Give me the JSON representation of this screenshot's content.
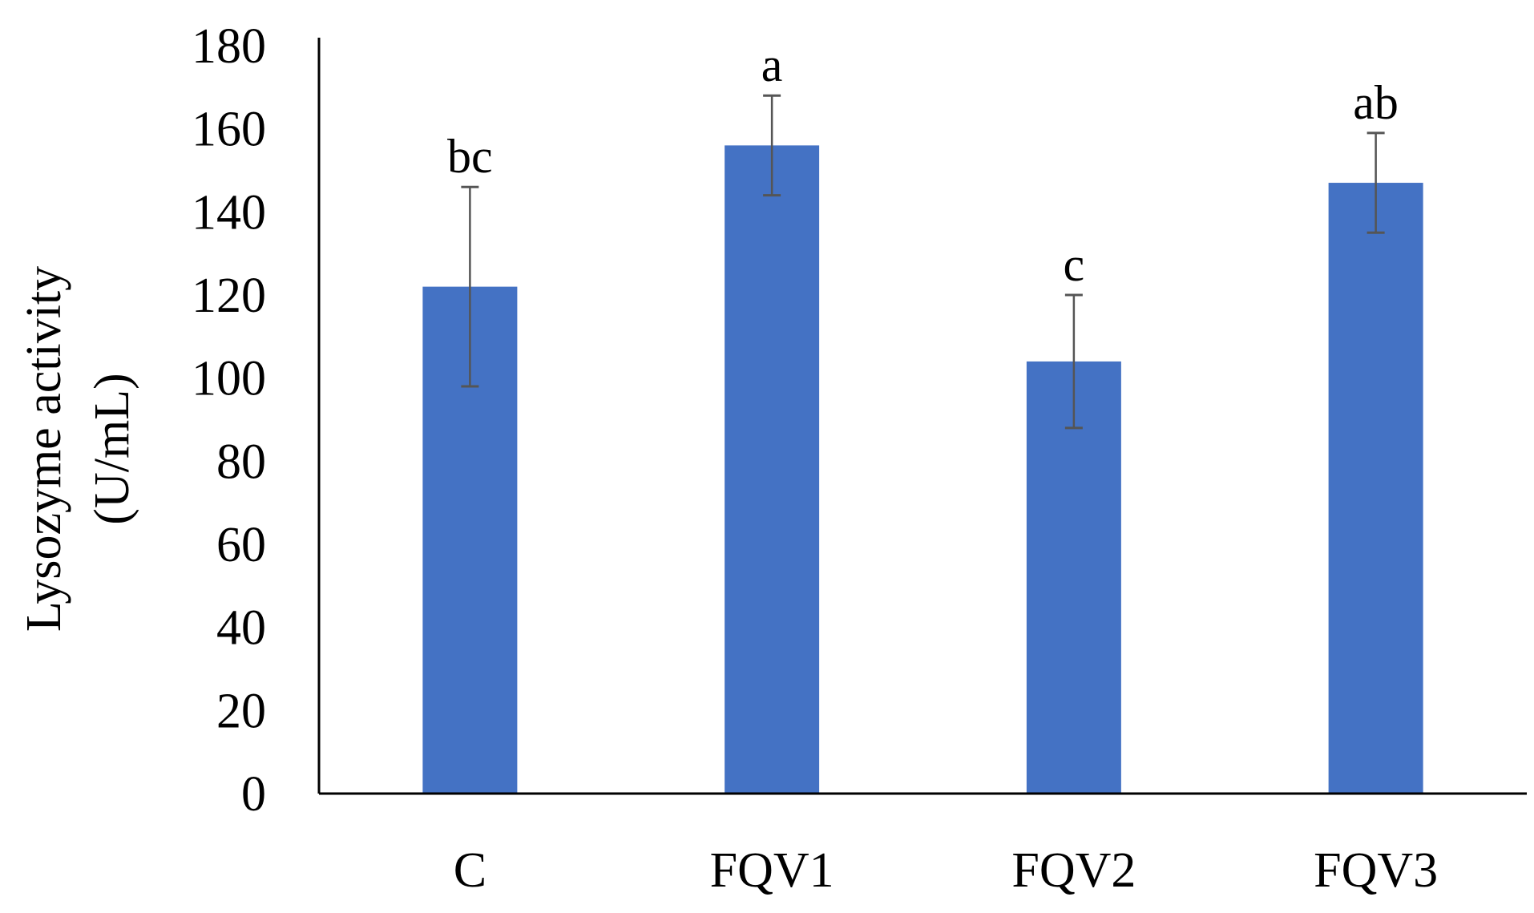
{
  "chart_data": {
    "type": "bar",
    "title": "",
    "xlabel": "",
    "ylabel_lines": [
      "Lysozyme  activity",
      "(U/mL)"
    ],
    "categories": [
      "C",
      "FQV1",
      "FQV2",
      "FQV3"
    ],
    "series": [
      {
        "values": [
          122,
          156,
          104,
          147
        ],
        "error": [
          24,
          12,
          16,
          12
        ],
        "significance": [
          "bc",
          "a",
          "c",
          "ab"
        ]
      }
    ],
    "ylim": [
      0,
      180
    ],
    "yticks": [
      "0",
      "20",
      "40",
      "60",
      "80",
      "100",
      "120",
      "140",
      "160",
      "180"
    ],
    "bar_color": "#4472c4",
    "error_bar_color": "#555555",
    "axis_color": "#000000",
    "grid": false,
    "legend": "none"
  }
}
